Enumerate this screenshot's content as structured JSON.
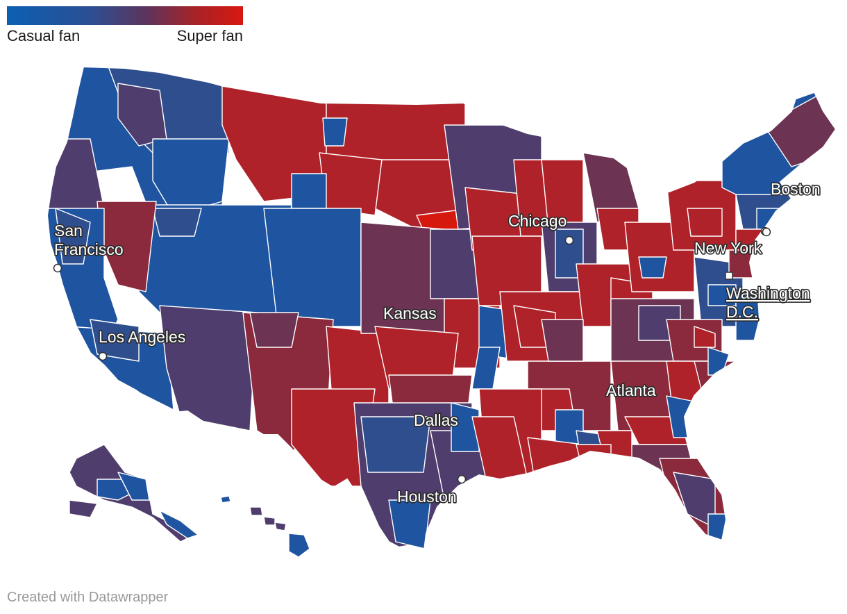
{
  "legend": {
    "min_label": "Casual fan",
    "max_label": "Super fan",
    "colors": [
      "#0c5fb3",
      "#2b4f93",
      "#59365f",
      "#a82226",
      "#d8180f"
    ]
  },
  "palette": {
    "casual": "#1f55a0",
    "blue_mid": "#2f4e8e",
    "purple": "#4f3d6d",
    "purple_red": "#6c3352",
    "maroon": "#8a2a3c",
    "red": "#b0222a",
    "super": "#d6190f"
  },
  "cities": [
    {
      "id": "san-francisco",
      "lines": [
        "San",
        "Francisco"
      ],
      "marker": "circle",
      "underlined": false
    },
    {
      "id": "los-angeles",
      "lines": [
        "Los Angeles"
      ],
      "marker": "circle",
      "underlined": false
    },
    {
      "id": "kansas",
      "lines": [
        "Kansas"
      ],
      "marker": "none",
      "underlined": false
    },
    {
      "id": "dallas",
      "lines": [
        "Dallas"
      ],
      "marker": "none",
      "underlined": false
    },
    {
      "id": "houston",
      "lines": [
        "Houston"
      ],
      "marker": "circle",
      "underlined": false
    },
    {
      "id": "chicago",
      "lines": [
        "Chicago"
      ],
      "marker": "circle",
      "underlined": false
    },
    {
      "id": "atlanta",
      "lines": [
        "Atlanta"
      ],
      "marker": "none",
      "underlined": false
    },
    {
      "id": "new-york",
      "lines": [
        "New York"
      ],
      "marker": "circle",
      "underlined": false
    },
    {
      "id": "boston",
      "lines": [
        "Boston"
      ],
      "marker": "circle",
      "underlined": false
    },
    {
      "id": "washington-dc",
      "lines": [
        "Washington",
        "D.C."
      ],
      "marker": "square",
      "underlined": true
    }
  ],
  "credit": "Created with Datawrapper"
}
